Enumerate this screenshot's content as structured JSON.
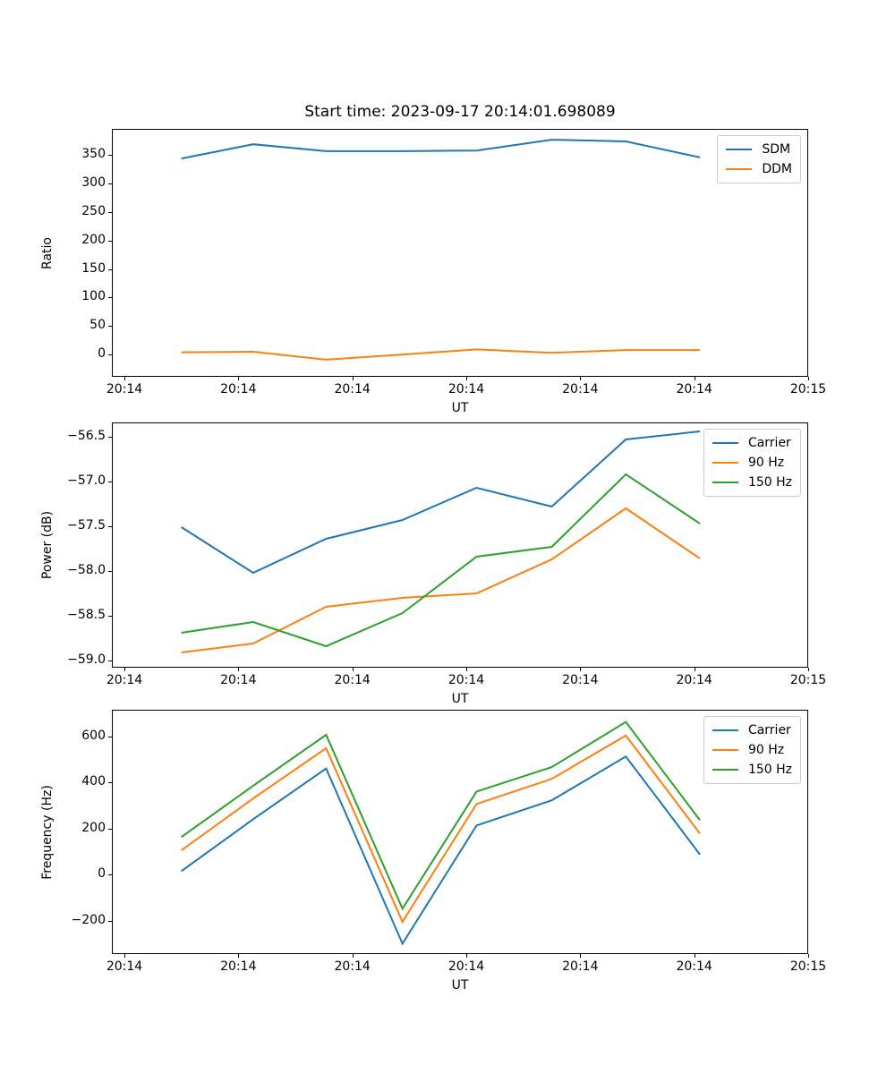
{
  "figure_title": "Start time: 2023-09-17 20:14:01.698089",
  "colors": {
    "blue": "#1f77b4",
    "orange": "#ff7f0e",
    "green": "#2ca02c",
    "spine": "#000000",
    "legend_border": "#cccccc"
  },
  "chart_data": [
    {
      "type": "line",
      "title": "Start time: 2023-09-17 20:14:01.698089",
      "xlabel": "UT",
      "ylabel": "Ratio",
      "grid": false,
      "legend_position": "upper right",
      "x_seconds": [
        5.0,
        11.3,
        17.7,
        24.4,
        30.9,
        37.5,
        44.0,
        50.5
      ],
      "xlim_seconds": [
        -1.1,
        60
      ],
      "x_ticks": {
        "seconds": [
          0,
          10,
          20,
          30,
          40,
          50,
          60
        ],
        "labels": [
          "20:14",
          "20:14",
          "20:14",
          "20:14",
          "20:14",
          "20:14",
          "20:15"
        ]
      },
      "ylim": [
        -39,
        396
      ],
      "y_ticks": [
        0,
        50,
        100,
        150,
        200,
        250,
        300,
        350
      ],
      "y_tick_labels": [
        "0",
        "50",
        "100",
        "150",
        "200",
        "250",
        "300",
        "350"
      ],
      "series": [
        {
          "name": "SDM",
          "color": "#1f77b4",
          "values": [
            344,
            369,
            357,
            357,
            358,
            377,
            374,
            346
          ]
        },
        {
          "name": "DDM",
          "color": "#ff7f0e",
          "values": [
            4,
            5,
            -9,
            0,
            9,
            3,
            8,
            8
          ]
        }
      ]
    },
    {
      "type": "line",
      "title": "",
      "xlabel": "UT",
      "ylabel": "Power (dB)",
      "grid": false,
      "legend_position": "upper right",
      "x_seconds": [
        5.0,
        11.3,
        17.7,
        24.4,
        30.9,
        37.5,
        44.0,
        50.5
      ],
      "xlim_seconds": [
        -1.1,
        60
      ],
      "x_ticks": {
        "seconds": [
          0,
          10,
          20,
          30,
          40,
          50,
          60
        ],
        "labels": [
          "20:14",
          "20:14",
          "20:14",
          "20:14",
          "20:14",
          "20:14",
          "20:15"
        ]
      },
      "ylim": [
        -59.08,
        -56.34
      ],
      "y_ticks": [
        -59.0,
        -58.5,
        -58.0,
        -57.5,
        -57.0,
        -56.5
      ],
      "y_tick_labels": [
        "−59.0",
        "−58.5",
        "−58.0",
        "−57.5",
        "−57.0",
        "−56.5"
      ],
      "series": [
        {
          "name": "Carrier",
          "color": "#1f77b4",
          "values": [
            -57.51,
            -58.02,
            -57.64,
            -57.43,
            -57.07,
            -57.28,
            -56.53,
            -56.44
          ]
        },
        {
          "name": "90 Hz",
          "color": "#ff7f0e",
          "values": [
            -58.91,
            -58.81,
            -58.4,
            -58.3,
            -58.25,
            -57.87,
            -57.3,
            -57.86
          ]
        },
        {
          "name": "150 Hz",
          "color": "#2ca02c",
          "values": [
            -58.69,
            -58.57,
            -58.84,
            -58.47,
            -57.84,
            -57.73,
            -56.92,
            -57.47
          ]
        }
      ]
    },
    {
      "type": "line",
      "title": "",
      "xlabel": "UT",
      "ylabel": "Frequency (Hz)",
      "grid": false,
      "legend_position": "upper right",
      "x_seconds": [
        5.0,
        11.3,
        17.7,
        24.4,
        30.9,
        37.5,
        44.0,
        50.5
      ],
      "xlim_seconds": [
        -1.1,
        60
      ],
      "x_ticks": {
        "seconds": [
          0,
          10,
          20,
          30,
          40,
          50,
          60
        ],
        "labels": [
          "20:14",
          "20:14",
          "20:14",
          "20:14",
          "20:14",
          "20:14",
          "20:15"
        ]
      },
      "ylim": [
        -345,
        715
      ],
      "y_ticks": [
        -200,
        0,
        200,
        400,
        600
      ],
      "y_tick_labels": [
        "−200",
        "0",
        "200",
        "400",
        "600"
      ],
      "series": [
        {
          "name": "Carrier",
          "color": "#1f77b4",
          "values": [
            15,
            240,
            460,
            -300,
            213,
            322,
            512,
            87
          ]
        },
        {
          "name": "90 Hz",
          "color": "#ff7f0e",
          "values": [
            105,
            330,
            548,
            -205,
            306,
            415,
            603,
            178
          ]
        },
        {
          "name": "150 Hz",
          "color": "#2ca02c",
          "values": [
            163,
            385,
            606,
            -148,
            360,
            466,
            662,
            236
          ]
        }
      ]
    }
  ]
}
